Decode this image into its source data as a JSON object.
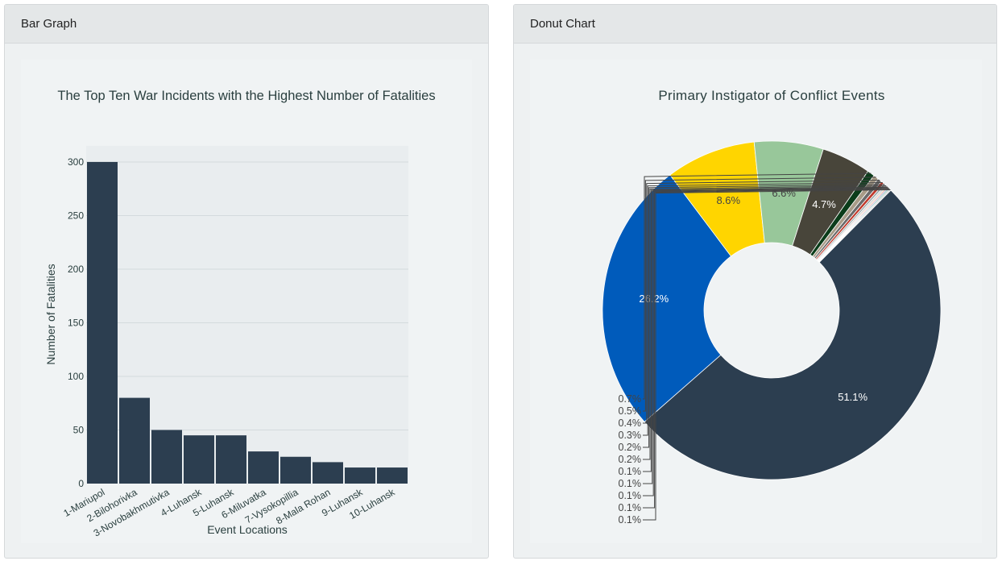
{
  "cards": {
    "bar": {
      "header": "Bar Graph"
    },
    "donut": {
      "header": "Donut Chart"
    }
  },
  "chart_data": [
    {
      "type": "bar",
      "title": "The Top Ten War Incidents with the Highest Number of Fatalities",
      "xlabel": "Event Locations",
      "ylabel": "Number of Fatalities",
      "categories": [
        "1-Mariupol",
        "2-Bilohorivka",
        "3-Novobakhmutivka",
        "4-Luhansk",
        "5-Luhansk",
        "6-Miluvatka",
        "7-Vysokopillia",
        "8-Mala Rohan",
        "9-Luhansk",
        "10-Luhansk"
      ],
      "values": [
        300,
        80,
        50,
        45,
        45,
        30,
        25,
        20,
        15,
        15
      ],
      "ylim": [
        0,
        315
      ],
      "yticks": [
        0,
        50,
        100,
        150,
        200,
        250,
        300
      ],
      "grid": true,
      "bar_color": "#2c3e50"
    },
    {
      "type": "pie",
      "donut": true,
      "title": "Primary Instigator of Conflict Events",
      "slices": [
        {
          "value": 51.1,
          "label": "51.1%",
          "color": "#2c3e50"
        },
        {
          "value": 26.2,
          "label": "26.2%",
          "color": "#005bbb"
        },
        {
          "value": 8.6,
          "label": "8.6%",
          "color": "#ffd500"
        },
        {
          "value": 6.6,
          "label": "6.6%",
          "color": "#98c79a"
        },
        {
          "value": 4.7,
          "label": "4.7%",
          "color": "#48453a"
        },
        {
          "value": 0.7,
          "label": "0.7%",
          "color": "#0b3d1a"
        },
        {
          "value": 0.5,
          "label": "0.5%",
          "color": "#a89c88"
        },
        {
          "value": 0.4,
          "label": "0.4%",
          "color": "#6b6b6b"
        },
        {
          "value": 0.3,
          "label": "0.3%",
          "color": "#c0392b"
        },
        {
          "value": 0.2,
          "label": "0.2%",
          "color": "#95a5a6"
        },
        {
          "value": 0.2,
          "label": "0.2%",
          "color": "#d6d6d6"
        },
        {
          "value": 0.1,
          "label": "0.1%",
          "color": "#e67e22"
        },
        {
          "value": 0.1,
          "label": "0.1%",
          "color": "#8e44ad"
        },
        {
          "value": 0.1,
          "label": "0.1%",
          "color": "#16a085"
        },
        {
          "value": 0.1,
          "label": "0.1%",
          "color": "#7f8c8d"
        },
        {
          "value": 0.1,
          "label": "0.1%",
          "color": "#bdc3c7"
        }
      ]
    }
  ]
}
